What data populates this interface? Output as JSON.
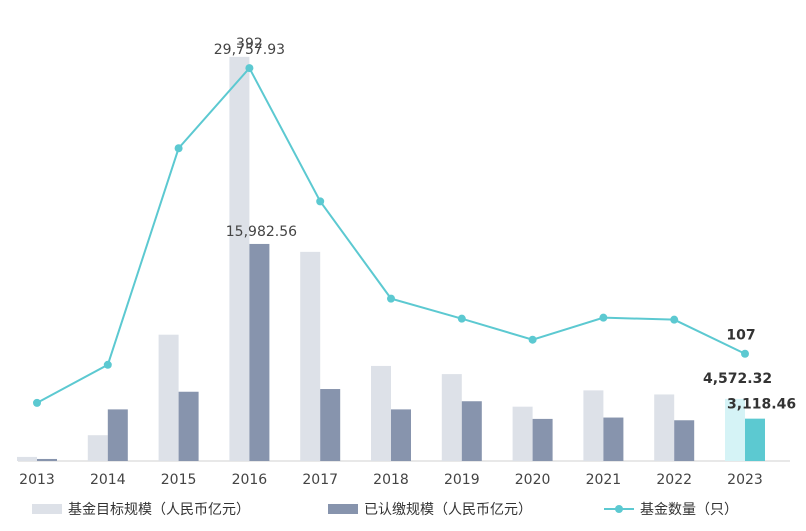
{
  "chart_data": {
    "type": "bar",
    "categories": [
      "2013",
      "2014",
      "2015",
      "2016",
      "2017",
      "2018",
      "2019",
      "2020",
      "2021",
      "2022",
      "2023"
    ],
    "series": [
      {
        "name": "基金目标规模（人民币亿元）",
        "kind": "bar",
        "axis": "left",
        "values": [
          300,
          1900,
          9300,
          29757.93,
          15400,
          7000,
          6400,
          4000,
          5200,
          4900,
          4572.32
        ],
        "color": "#dde1e8",
        "highlight_color": "#d5f3f6"
      },
      {
        "name": "已认缴规模（人民币亿元）",
        "kind": "bar",
        "axis": "left",
        "values": [
          150,
          3800,
          5100,
          15982.56,
          5300,
          3800,
          4400,
          3100,
          3200,
          3000,
          3118.46
        ],
        "color": "#8794ad",
        "highlight_color": "#5cc9d1"
      },
      {
        "name": "基金数量（只）",
        "kind": "line",
        "axis": "right",
        "values": [
          58,
          96,
          312,
          392,
          259,
          162,
          142,
          121,
          143,
          141,
          107
        ],
        "color": "#5cc9d1"
      }
    ],
    "labels": [
      {
        "series": 2,
        "index": 3,
        "text": "392"
      },
      {
        "series": 0,
        "index": 3,
        "text": "29,757.93"
      },
      {
        "series": 1,
        "index": 3,
        "text": "15,982.56"
      },
      {
        "series": 2,
        "index": 10,
        "text": "107"
      },
      {
        "series": 0,
        "index": 10,
        "text": "4,572.32"
      },
      {
        "series": 1,
        "index": 10,
        "text": "3,118.46"
      }
    ],
    "highlight_index": 10,
    "ylim_left": [
      0,
      31000
    ],
    "ylim_right": [
      0,
      420
    ],
    "grid": false,
    "legend_position": "bottom"
  }
}
